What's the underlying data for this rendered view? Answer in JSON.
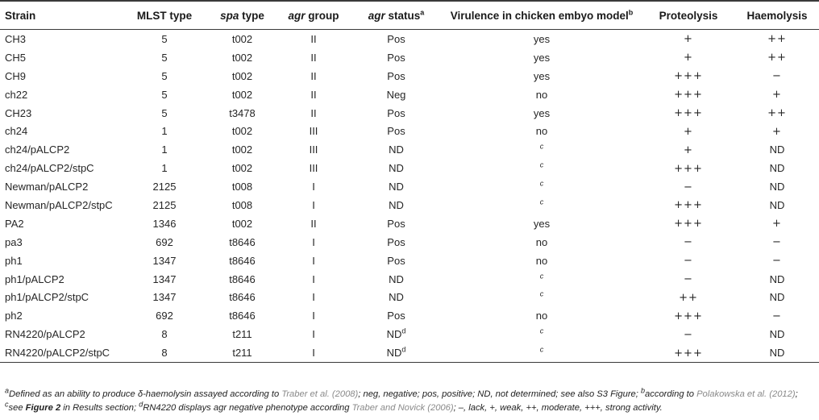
{
  "headers": {
    "strain": "Strain",
    "mlst": "MLST type",
    "spa_italic": "spa",
    "spa_rest": " type",
    "agr_group_italic": "agr",
    "agr_group_rest": " group",
    "agr_status_italic": "agr",
    "agr_status_rest": " status",
    "agr_status_sup": "a",
    "virulence": "Virulence in chicken embyo model",
    "virulence_sup": "b",
    "proteolysis": "Proteolysis",
    "haemolysis": "Haemolysis"
  },
  "rows": [
    {
      "strain": "CH3",
      "mlst": "5",
      "spa": "t002",
      "agr_group": "II",
      "agr_status": "Pos",
      "agr_sup": "",
      "virulence": "yes",
      "proteolysis": "+",
      "haemolysis": "++"
    },
    {
      "strain": "CH5",
      "mlst": "5",
      "spa": "t002",
      "agr_group": "II",
      "agr_status": "Pos",
      "agr_sup": "",
      "virulence": "yes",
      "proteolysis": "+",
      "haemolysis": "++"
    },
    {
      "strain": "CH9",
      "mlst": "5",
      "spa": "t002",
      "agr_group": "II",
      "agr_status": "Pos",
      "agr_sup": "",
      "virulence": "yes",
      "proteolysis": "+++",
      "haemolysis": "−"
    },
    {
      "strain": "ch22",
      "mlst": "5",
      "spa": "t002",
      "agr_group": "II",
      "agr_status": "Neg",
      "agr_sup": "",
      "virulence": "no",
      "proteolysis": "+++",
      "haemolysis": "+"
    },
    {
      "strain": "CH23",
      "mlst": "5",
      "spa": "t3478",
      "agr_group": "II",
      "agr_status": "Pos",
      "agr_sup": "",
      "virulence": "yes",
      "proteolysis": "+++",
      "haemolysis": "++"
    },
    {
      "strain": "ch24",
      "mlst": "1",
      "spa": "t002",
      "agr_group": "III",
      "agr_status": "Pos",
      "agr_sup": "",
      "virulence": "no",
      "proteolysis": "+",
      "haemolysis": "+"
    },
    {
      "strain": "ch24/pALCP2",
      "mlst": "1",
      "spa": "t002",
      "agr_group": "III",
      "agr_status": "ND",
      "agr_sup": "",
      "virulence": "c",
      "proteolysis": "+",
      "haemolysis": "ND"
    },
    {
      "strain": "ch24/pALCP2/stpC",
      "mlst": "1",
      "spa": "t002",
      "agr_group": "III",
      "agr_status": "ND",
      "agr_sup": "",
      "virulence": "c",
      "proteolysis": "+++",
      "haemolysis": "ND"
    },
    {
      "strain": "Newman/pALCP2",
      "mlst": "2125",
      "spa": "t008",
      "agr_group": "I",
      "agr_status": "ND",
      "agr_sup": "",
      "virulence": "c",
      "proteolysis": "−",
      "haemolysis": "ND"
    },
    {
      "strain": "Newman/pALCP2/stpC",
      "mlst": "2125",
      "spa": "t008",
      "agr_group": "I",
      "agr_status": "ND",
      "agr_sup": "",
      "virulence": "c",
      "proteolysis": "+++",
      "haemolysis": "ND"
    },
    {
      "strain": "PA2",
      "mlst": "1346",
      "spa": "t002",
      "agr_group": "II",
      "agr_status": "Pos",
      "agr_sup": "",
      "virulence": "yes",
      "proteolysis": "+++",
      "haemolysis": "+"
    },
    {
      "strain": "pa3",
      "mlst": "692",
      "spa": "t8646",
      "agr_group": "I",
      "agr_status": "Pos",
      "agr_sup": "",
      "virulence": "no",
      "proteolysis": "−",
      "haemolysis": "−"
    },
    {
      "strain": "ph1",
      "mlst": "1347",
      "spa": "t8646",
      "agr_group": "I",
      "agr_status": "Pos",
      "agr_sup": "",
      "virulence": "no",
      "proteolysis": "−",
      "haemolysis": "−"
    },
    {
      "strain": "ph1/pALCP2",
      "mlst": "1347",
      "spa": "t8646",
      "agr_group": "I",
      "agr_status": "ND",
      "agr_sup": "",
      "virulence": "c",
      "proteolysis": "−",
      "haemolysis": "ND"
    },
    {
      "strain": "ph1/pALCP2/stpC",
      "mlst": "1347",
      "spa": "t8646",
      "agr_group": "I",
      "agr_status": "ND",
      "agr_sup": "",
      "virulence": "c",
      "proteolysis": "++",
      "haemolysis": "ND"
    },
    {
      "strain": "ph2",
      "mlst": "692",
      "spa": "t8646",
      "agr_group": "I",
      "agr_status": "Pos",
      "agr_sup": "",
      "virulence": "no",
      "proteolysis": "+++",
      "haemolysis": "−"
    },
    {
      "strain": "RN4220/pALCP2",
      "mlst": "8",
      "spa": "t211",
      "agr_group": "I",
      "agr_status": "ND",
      "agr_sup": "d",
      "virulence": "c",
      "proteolysis": "−",
      "haemolysis": "ND"
    },
    {
      "strain": "RN4220/pALCP2/stpC",
      "mlst": "8",
      "spa": "t211",
      "agr_group": "I",
      "agr_status": "ND",
      "agr_sup": "d",
      "virulence": "c",
      "proteolysis": "+++",
      "haemolysis": "ND"
    }
  ],
  "footnote": {
    "a_sup": "a",
    "a_text": "Defined as an ability to produce δ-haemolysin assayed according to ",
    "a_link": "Traber et al. (2008)",
    "a_rest": "; neg, negative; pos, positive; ND, not determined; see also S3 Figure; ",
    "b_sup": "b",
    "b_text": "according to ",
    "b_link": "Polakowska et al. (2012)",
    "b_rest": "; ",
    "c_sup": "c",
    "c_text": "see ",
    "c_bold": "Figure 2",
    "c_rest": " in Results section; ",
    "d_sup": "d",
    "d_text": "RN4220 displays agr negative phenotype according ",
    "d_link": "Traber and Novick (2006)",
    "d_rest": "; –, lack, +, weak, ++, moderate, +++, strong activity."
  }
}
